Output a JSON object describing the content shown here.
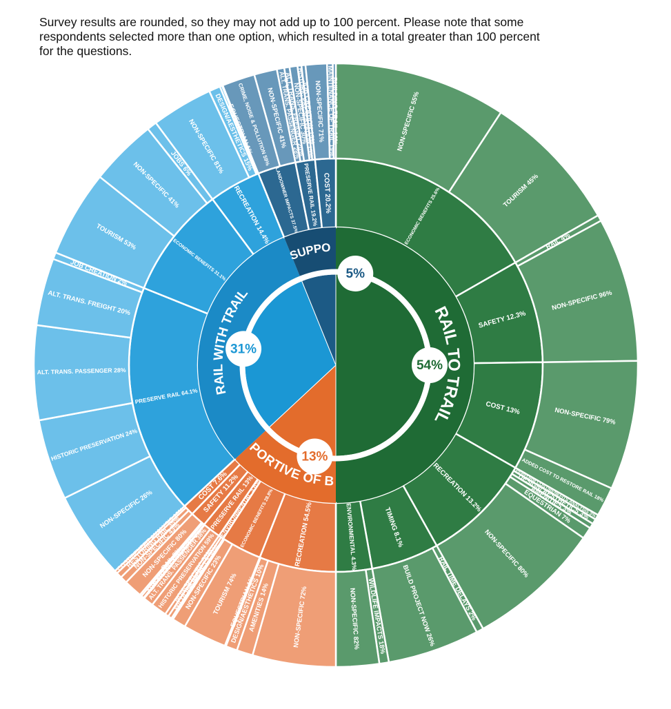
{
  "note": {
    "line1": "Survey results are rounded, so they may not add up to 100 percent. Please note that some",
    "line2": "respondents selected more than one option, which resulted in a total greater than 100 percent",
    "line3": "for the questions."
  },
  "chart_data": {
    "type": "sunburst",
    "title": "",
    "categories": [
      {
        "label": "RAIL TO TRAIL",
        "pct": "54%",
        "value": 54,
        "color": "#1f6b35",
        "children": [
          {
            "label": "ECONOMIC BENEFITS 25.6%",
            "value": 25.6,
            "children": [
              {
                "label": "NON-SPECIFIC 55%",
                "value": 55
              },
              {
                "label": "TOURISM 45%",
                "value": 45
              }
            ]
          },
          {
            "label": "SAFETY 12.3%",
            "value": 12.3,
            "children": [
              {
                "label": "RAIL 4%",
                "value": 4
              },
              {
                "label": "NON-SPECIFIC 96%",
                "value": 96
              }
            ]
          },
          {
            "label": "COST 13%",
            "value": 13,
            "children": [
              {
                "label": "NON-SPECIFIC 79%",
                "value": 79
              },
              {
                "label": "ADDED COST TO RESTORE RAIL 18%",
                "value": 18
              }
            ]
          },
          {
            "label": "RECREATION 13.2%",
            "value": 13.2,
            "children": [
              {
                "label": "PERFORM COST/BENEFITS ANALYSIS 3%",
                "value": 3
              },
              {
                "label": "DESIGN/ AESTHETICS 3%",
                "value": 3
              },
              {
                "label": "AMENITIES 3%",
                "value": 3
              },
              {
                "label": "EQUESTRIAN 7%",
                "value": 7
              },
              {
                "label": "NON-SPECIFIC 80%",
                "value": 80
              }
            ]
          },
          {
            "label": "TIMING 8.1%",
            "value": 8.1,
            "children": [
              {
                "label": "RAIL TIME DELAYS 2%",
                "value": 2
              },
              {
                "label": "BUILD PROJECT NOW 26%",
                "value": 26
              }
            ]
          },
          {
            "label": "ENVIRONMENTAL 4.3%",
            "value": 4.3,
            "children": [
              {
                "label": "WILDLIFE IMPACTS 18%",
                "value": 18
              },
              {
                "label": "NON-SPECIFIC 82%",
                "value": 82
              }
            ]
          }
        ]
      },
      {
        "label": "SUPPORTIVE OF BOTH",
        "pct": "13%",
        "value": 13,
        "color": "#e36c2c",
        "children": [
          {
            "label": "RECREATION 54.5%",
            "value": 54.5,
            "children": [
              {
                "label": "NON-SPECIFIC 72%",
                "value": 72
              },
              {
                "label": "AMENITIES 14%",
                "value": 14
              },
              {
                "label": "DESIGN/AESTHETICS 10%",
                "value": 10
              },
              {
                "label": "EQUESTRIAN 1%",
                "value": 1
              }
            ]
          },
          {
            "label": "ECONOMIC BENEFITS 28.8%",
            "value": 28.8,
            "children": [
              {
                "label": "TOURISM 74%",
                "value": 74
              },
              {
                "label": "NON-SPECIFIC 23%",
                "value": 23
              },
              {
                "label": "JOBS 3%",
                "value": 3
              }
            ]
          },
          {
            "label": "ENVIRONMENTAL 3.6%",
            "value": 3.6,
            "children": [
              {
                "label": "WILDLIFE IMPACTS 50%",
                "value": 50
              },
              {
                "label": "NON-SPECIFIC 50%",
                "value": 50
              }
            ]
          },
          {
            "label": "PRESERVE RAIL 13%",
            "value": 13,
            "children": [
              {
                "label": "HISTORIC PRESERVATION 59%",
                "value": 59
              },
              {
                "label": "ALT. TRANS. PASSENGER 38%",
                "value": 38
              },
              {
                "label": "ALT. TRANS. FREIGHT 3%",
                "value": 3
              }
            ]
          },
          {
            "label": "SAFETY 11.2%",
            "value": 11.2,
            "children": [
              {
                "label": "TRAIL SECURITY 12%",
                "value": 12
              },
              {
                "label": "RAIL 8%",
                "value": 8
              },
              {
                "label": "NON-SPECIFIC 80%",
                "value": 80
              }
            ]
          },
          {
            "label": "COST 7.6%",
            "value": 7.6,
            "children": [
              {
                "label": "NON-SPECIFIC 43%",
                "value": 43
              },
              {
                "label": "RESTORING RAIL 35%",
                "value": 35
              },
              {
                "label": "COST/BENEFIT ANALYSIS 18%",
                "value": 18
              }
            ]
          }
        ]
      },
      {
        "label": "RAIL WITH TRAIL",
        "pct": "31%",
        "value": 31,
        "color": "#1b97d4",
        "children": [
          {
            "label": "PRESERVE RAIL 64.1%",
            "value": 64.1,
            "children": [
              {
                "label": "NON-SPECIFIC 26%",
                "value": 26
              },
              {
                "label": "HISTORIC PRESERVATION 24%",
                "value": 24
              },
              {
                "label": "ALT. TRANS. PASSENGER 28%",
                "value": 28
              },
              {
                "label": "ALT. TRANS. FREIGHT 20%",
                "value": 20
              },
              {
                "label": "JOB CREATION 2%",
                "value": 2
              }
            ]
          },
          {
            "label": "ECONOMIC BENEFITS 31.1%",
            "value": 31.1,
            "children": [
              {
                "label": "TOURISM 53%",
                "value": 53
              },
              {
                "label": "NON-SPECIFIC 41%",
                "value": 41
              },
              {
                "label": "JOBS 6%",
                "value": 6
              }
            ]
          },
          {
            "label": "RECREATION 14.4%",
            "value": 14.4,
            "children": [
              {
                "label": "NON-SPECIFIC 81%",
                "value": 81
              },
              {
                "label": "DESIGN/AESTHETICS 15%",
                "value": 15
              },
              {
                "label": "AMENITIES 3%",
                "value": 3
              },
              {
                "label": "EQUESTRIAN 1%",
                "value": 1
              }
            ]
          }
        ]
      },
      {
        "label": "NOT SUPPORTIVE",
        "pct": "5%",
        "value": 5,
        "color": "#1c5a85",
        "children": [
          {
            "label": "LANDOWNER IMPACTS 37.5%",
            "value": 37.5,
            "children": [
              {
                "label": "CRIME, NOISE & POLLUTION 59%",
                "value": 59
              },
              {
                "label": "NON-SPECIFIC 41%",
                "value": 41
              }
            ]
          },
          {
            "label": "PRESERVE RAIL 19.2%",
            "value": 19.2,
            "children": [
              {
                "label": "ALT. TRANS. PASSENGER 28%",
                "value": 28
              },
              {
                "label": "ALT. TRANS. FREIGHT 20%",
                "value": 20
              },
              {
                "label": "NON-SPECIFIC 30%",
                "value": 30
              },
              {
                "label": "HISTORIC PRESERVATION 15%",
                "value": 15
              },
              {
                "label": "JOB CREATION 15%",
                "value": 15
              }
            ]
          },
          {
            "label": "COST 20.2%",
            "value": 20.2,
            "children": [
              {
                "label": "NON-SPECIFIC 71%",
                "value": 71
              },
              {
                "label": "MAINTENANCE OF TRAIL 19%",
                "value": 19
              },
              {
                "label": "BUILDING TRAIL 10%",
                "value": 10
              }
            ]
          }
        ]
      }
    ]
  }
}
